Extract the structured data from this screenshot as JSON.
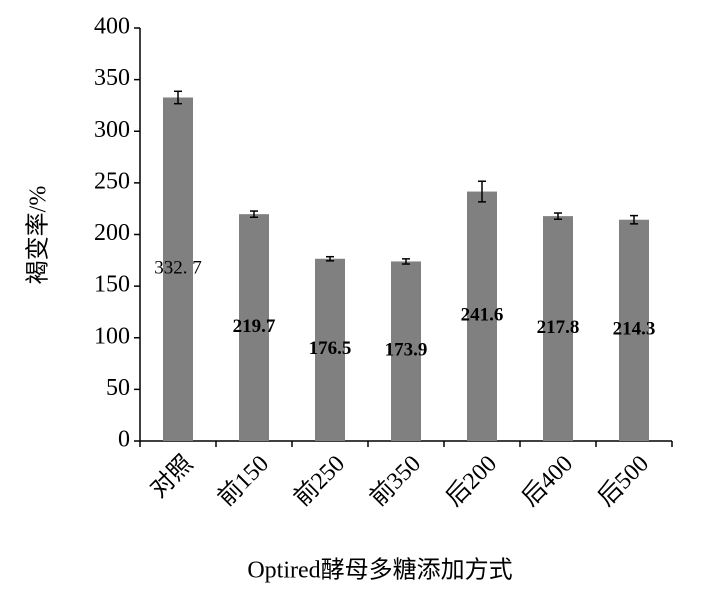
{
  "chart_data": {
    "type": "bar",
    "categories": [
      "对照",
      "前150",
      "前250",
      "前350",
      "后200",
      "后400",
      "后500"
    ],
    "values": [
      332.7,
      219.7,
      176.5,
      173.9,
      241.6,
      217.8,
      214.3
    ],
    "value_labels": [
      "332. 7",
      "219.7",
      "176.5",
      "173.9",
      "241.6",
      "217.8",
      "214.3"
    ],
    "errors": [
      6,
      3,
      2,
      2.5,
      10,
      3,
      4
    ],
    "color": "#808080",
    "ylim": [
      0,
      400
    ],
    "yticks": [
      0,
      50,
      100,
      150,
      200,
      250,
      300,
      350,
      400
    ],
    "xlabel": "Optired酵母多糖添加方式",
    "ylabel": "褐变率/%"
  }
}
